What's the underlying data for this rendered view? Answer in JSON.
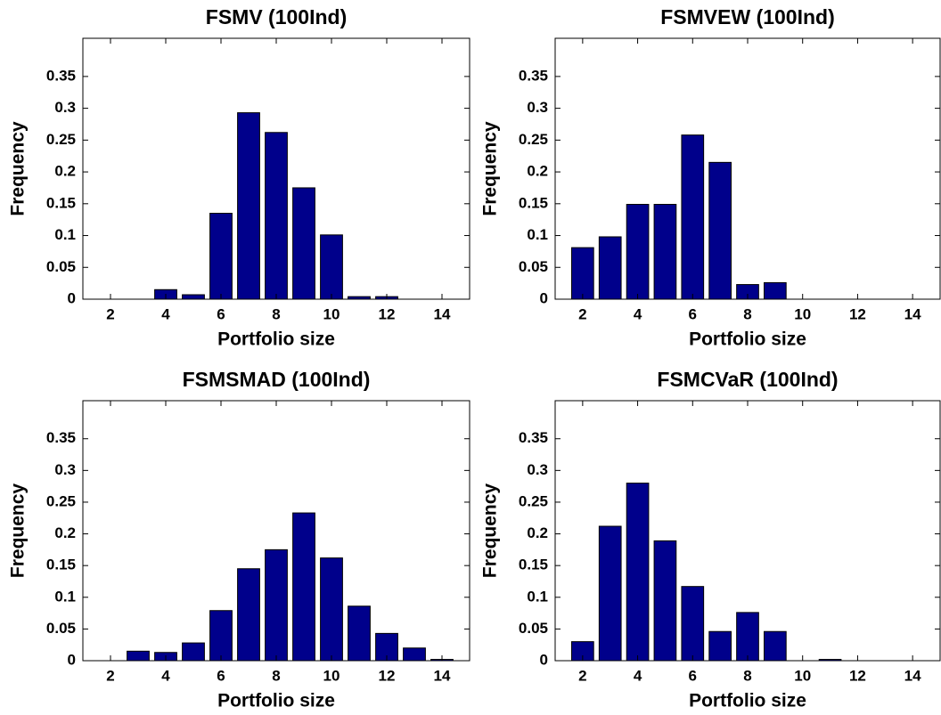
{
  "chart_data": [
    {
      "type": "bar",
      "title": "FSMV (100Ind)",
      "xlabel": "Portfolio size",
      "ylabel": "Frequency",
      "color": "#00008b",
      "x": [
        2,
        3,
        4,
        5,
        6,
        7,
        8,
        9,
        10,
        11,
        12,
        13,
        14
      ],
      "values": [
        0,
        0,
        0.015,
        0.007,
        0.135,
        0.293,
        0.262,
        0.175,
        0.101,
        0.004,
        0.004,
        0,
        0
      ],
      "xlim": [
        1,
        15
      ],
      "ylim": [
        0,
        0.41
      ],
      "xticks": [
        2,
        4,
        6,
        8,
        10,
        12,
        14
      ],
      "yticks": [
        0,
        0.05,
        0.1,
        0.15,
        0.2,
        0.25,
        0.3,
        0.35
      ]
    },
    {
      "type": "bar",
      "title": "FSMVEW (100Ind)",
      "xlabel": "Portfolio size",
      "ylabel": "Frequency",
      "color": "#00008b",
      "x": [
        2,
        3,
        4,
        5,
        6,
        7,
        8,
        9,
        10,
        11,
        12,
        13,
        14
      ],
      "values": [
        0.081,
        0.098,
        0.149,
        0.149,
        0.258,
        0.215,
        0.023,
        0.026,
        0,
        0,
        0,
        0,
        0
      ],
      "xlim": [
        1,
        15
      ],
      "ylim": [
        0,
        0.41
      ],
      "xticks": [
        2,
        4,
        6,
        8,
        10,
        12,
        14
      ],
      "yticks": [
        0,
        0.05,
        0.1,
        0.15,
        0.2,
        0.25,
        0.3,
        0.35
      ]
    },
    {
      "type": "bar",
      "title": "FSMSMAD (100Ind)",
      "xlabel": "Portfolio size",
      "ylabel": "Frequency",
      "color": "#00008b",
      "x": [
        2,
        3,
        4,
        5,
        6,
        7,
        8,
        9,
        10,
        11,
        12,
        13,
        14
      ],
      "values": [
        0,
        0.015,
        0.013,
        0.028,
        0.079,
        0.145,
        0.175,
        0.233,
        0.162,
        0.086,
        0.043,
        0.02,
        0.002
      ],
      "xlim": [
        1,
        15
      ],
      "ylim": [
        0,
        0.41
      ],
      "xticks": [
        2,
        4,
        6,
        8,
        10,
        12,
        14
      ],
      "yticks": [
        0,
        0.05,
        0.1,
        0.15,
        0.2,
        0.25,
        0.3,
        0.35
      ]
    },
    {
      "type": "bar",
      "title": "FSMCVaR (100Ind)",
      "xlabel": "Portfolio size",
      "ylabel": "Frequency",
      "color": "#00008b",
      "x": [
        2,
        3,
        4,
        5,
        6,
        7,
        8,
        9,
        10,
        11,
        12,
        13,
        14
      ],
      "values": [
        0.03,
        0.212,
        0.28,
        0.189,
        0.117,
        0.046,
        0.076,
        0.046,
        0,
        0.002,
        0,
        0,
        0
      ],
      "xlim": [
        1,
        15
      ],
      "ylim": [
        0,
        0.41
      ],
      "xticks": [
        2,
        4,
        6,
        8,
        10,
        12,
        14
      ],
      "yticks": [
        0,
        0.05,
        0.1,
        0.15,
        0.2,
        0.25,
        0.3,
        0.35
      ]
    }
  ]
}
